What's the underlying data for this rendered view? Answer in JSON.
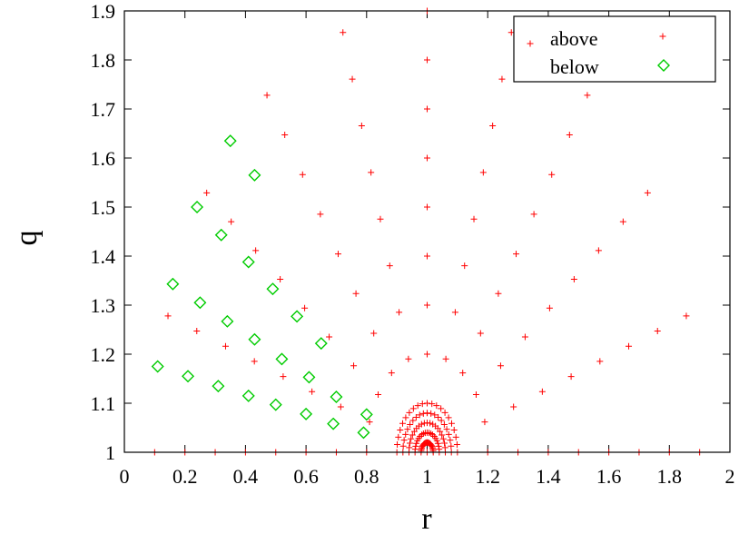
{
  "chart_data": {
    "type": "scatter",
    "xlabel": "r",
    "ylabel": "q",
    "xlim": [
      0,
      2
    ],
    "ylim": [
      1,
      1.9
    ],
    "grid": false,
    "legend_position": "top-right",
    "x_ticks": [
      "0",
      "0.2",
      "0.4",
      "0.6",
      "0.8",
      "1",
      "1.2",
      "1.4",
      "1.6",
      "1.8",
      "2"
    ],
    "y_ticks": [
      "1",
      "1.1",
      "1.2",
      "1.3",
      "1.4",
      "1.5",
      "1.6",
      "1.7",
      "1.8",
      "1.9"
    ],
    "series": [
      {
        "name": "above",
        "marker": "plus",
        "color": "#ff0000",
        "description": "semicircular rings centered at (1,1), radii 0.1 to 0.9, plus a dense cluster of radius <= 0.1 around (1,1)",
        "center": [
          1,
          1
        ],
        "radii": [
          0.2,
          0.3,
          0.4,
          0.5,
          0.6,
          0.7,
          0.8,
          0.9
        ],
        "points_per_ring": 11,
        "cluster_radii": [
          0.02,
          0.04,
          0.06,
          0.08,
          0.1
        ],
        "cluster_points_per_ring": 21
      },
      {
        "name": "below",
        "marker": "diamond",
        "color": "#00cc00",
        "points": [
          [
            0.11,
            1.175
          ],
          [
            0.21,
            1.155
          ],
          [
            0.31,
            1.135
          ],
          [
            0.41,
            1.115
          ],
          [
            0.5,
            1.097
          ],
          [
            0.6,
            1.078
          ],
          [
            0.69,
            1.058
          ],
          [
            0.79,
            1.04
          ],
          [
            0.16,
            1.343
          ],
          [
            0.25,
            1.305
          ],
          [
            0.34,
            1.267
          ],
          [
            0.43,
            1.23
          ],
          [
            0.52,
            1.19
          ],
          [
            0.61,
            1.153
          ],
          [
            0.7,
            1.113
          ],
          [
            0.8,
            1.077
          ],
          [
            0.24,
            1.5
          ],
          [
            0.32,
            1.443
          ],
          [
            0.41,
            1.388
          ],
          [
            0.49,
            1.333
          ],
          [
            0.57,
            1.277
          ],
          [
            0.65,
            1.222
          ],
          [
            0.35,
            1.635
          ],
          [
            0.43,
            1.565
          ]
        ]
      }
    ]
  }
}
